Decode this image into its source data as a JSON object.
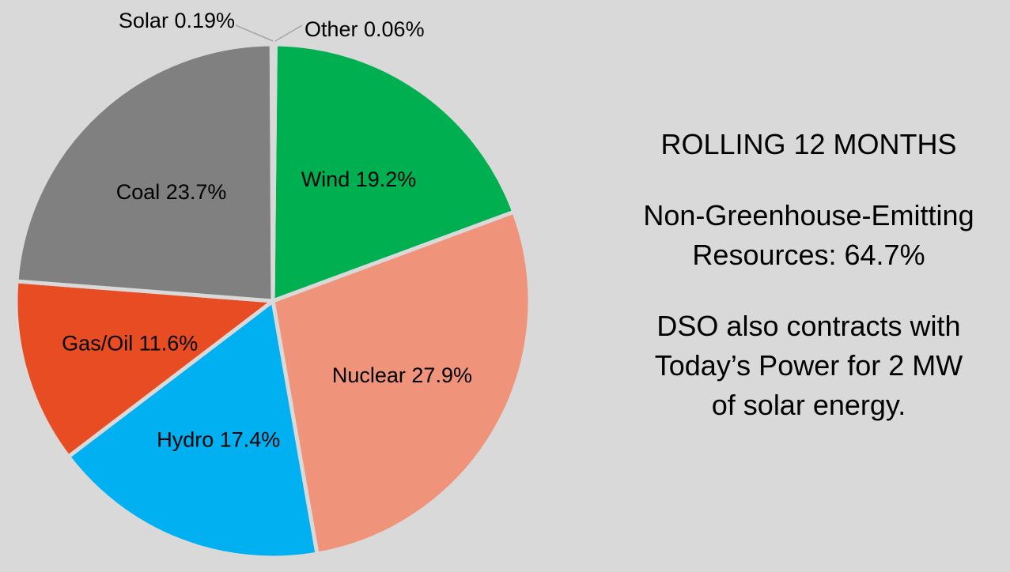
{
  "chart_data": {
    "type": "pie",
    "title": "",
    "slices": [
      {
        "name": "Wind",
        "label": "Wind 19.2%",
        "value": 19.2,
        "color": "#00b050"
      },
      {
        "name": "Nuclear",
        "label": "Nuclear 27.9%",
        "value": 27.9,
        "color": "#f0937b"
      },
      {
        "name": "Hydro",
        "label": "Hydro 17.4%",
        "value": 17.4,
        "color": "#00b0f0"
      },
      {
        "name": "Gas/Oil",
        "label": "Gas/Oil 11.6%",
        "value": 11.6,
        "color": "#e84c22"
      },
      {
        "name": "Coal",
        "label": "Coal 23.7%",
        "value": 23.7,
        "color": "#808080"
      },
      {
        "name": "Solar",
        "label": "Solar 0.19%",
        "value": 0.19,
        "color": "#a6a6a6"
      },
      {
        "name": "Other",
        "label": "Other 0.06%",
        "value": 0.06,
        "color": "#c0504d"
      }
    ],
    "legend": "none",
    "labels": "on-slice"
  },
  "side_panel": {
    "heading": "ROLLING 12 MONTHS",
    "resources_line1": "Non-Greenhouse-Emitting",
    "resources_line2": "Resources: 64.7%",
    "note_line1": "DSO also contracts with",
    "note_line2": "Today’s Power for 2 MW",
    "note_line3": "of solar energy."
  },
  "colors": {
    "background": "#d9d9d9",
    "slice_border": "#d9d9d9"
  }
}
